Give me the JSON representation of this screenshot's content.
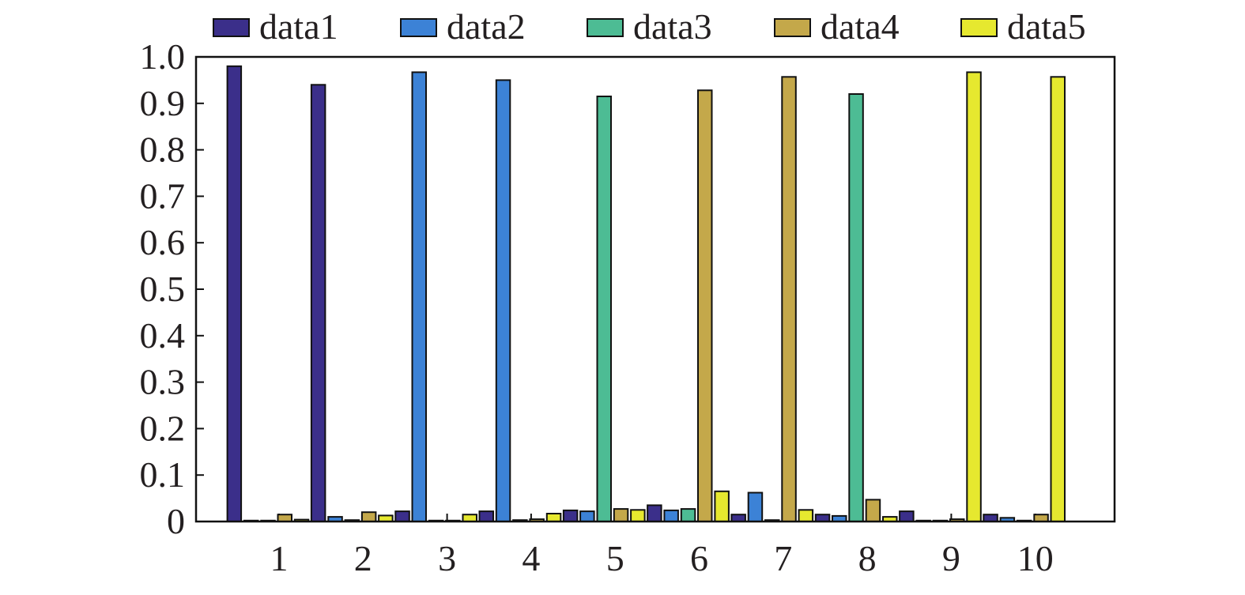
{
  "chart_data": {
    "type": "bar",
    "title": "",
    "xlabel": "",
    "ylabel": "",
    "categories": [
      "1",
      "2",
      "3",
      "4",
      "5",
      "6",
      "7",
      "8",
      "9",
      "10"
    ],
    "ylim": [
      0,
      1.0
    ],
    "yticks": [
      0,
      0.1,
      0.2,
      0.3,
      0.4,
      0.5,
      0.6,
      0.7,
      0.8,
      0.9,
      1.0
    ],
    "ytick_labels": [
      "0",
      "0.1",
      "0.2",
      "0.3",
      "0.4",
      "0.5",
      "0.6",
      "0.7",
      "0.8",
      "0.9",
      "1.0"
    ],
    "grid": false,
    "legend_position": "top",
    "series": [
      {
        "name": "data1",
        "color": "#3b2f8a",
        "values": [
          0.98,
          0.94,
          0.022,
          0.022,
          0.024,
          0.035,
          0.015,
          0.015,
          0.022,
          0.015
        ]
      },
      {
        "name": "data2",
        "color": "#3c82d6",
        "values": [
          0.002,
          0.01,
          0.967,
          0.95,
          0.022,
          0.024,
          0.062,
          0.012,
          0.002,
          0.008
        ]
      },
      {
        "name": "data3",
        "color": "#4dbc94",
        "values": [
          0.002,
          0.003,
          0.002,
          0.003,
          0.915,
          0.027,
          0.003,
          0.92,
          0.002,
          0.002
        ]
      },
      {
        "name": "data4",
        "color": "#c4a84a",
        "values": [
          0.015,
          0.02,
          0.002,
          0.005,
          0.027,
          0.928,
          0.957,
          0.047,
          0.005,
          0.015
        ]
      },
      {
        "name": "data5",
        "color": "#e6e82f",
        "values": [
          0.004,
          0.013,
          0.015,
          0.017,
          0.025,
          0.065,
          0.025,
          0.01,
          0.967,
          0.957
        ]
      }
    ]
  }
}
